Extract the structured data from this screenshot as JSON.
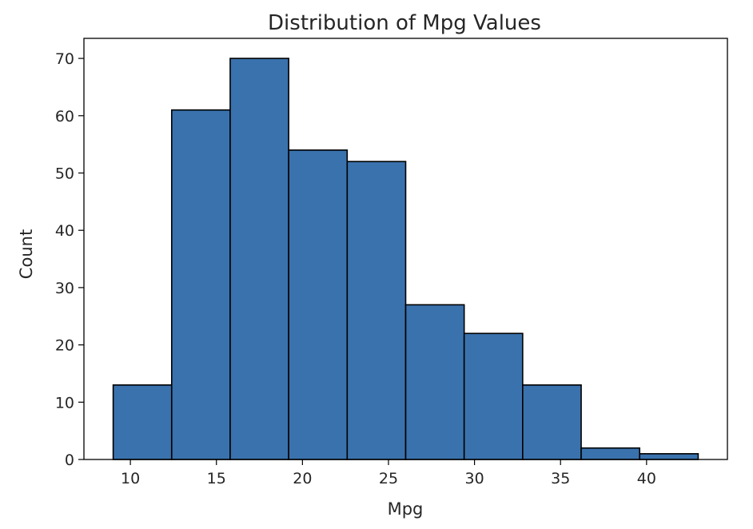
{
  "chart_data": {
    "type": "bar",
    "title": "Distribution of Mpg Values",
    "xlabel": "Mpg",
    "ylabel": "Count",
    "bin_edges": [
      9.0,
      12.4,
      15.8,
      19.2,
      22.6,
      26.0,
      29.4,
      32.8,
      36.2,
      39.6,
      43.0
    ],
    "values": [
      13,
      61,
      70,
      54,
      52,
      27,
      22,
      13,
      2,
      1
    ],
    "xlim": [
      7.3,
      44.7
    ],
    "ylim": [
      0,
      73.5
    ],
    "xticks": [
      10,
      15,
      20,
      25,
      30,
      35,
      40
    ],
    "yticks": [
      0,
      10,
      20,
      30,
      40,
      50,
      60,
      70
    ],
    "bar_color": "#3a72ad",
    "edge_color": "#000000",
    "grid": false
  }
}
